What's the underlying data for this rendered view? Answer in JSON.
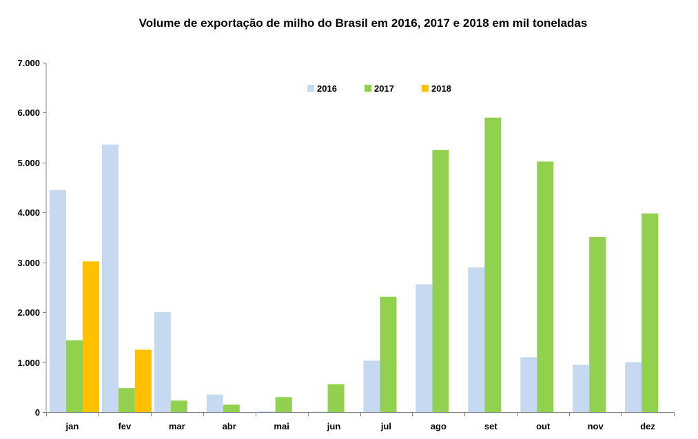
{
  "chart_data": {
    "type": "bar",
    "title": "Volume de exportação de milho do Brasil em 2016, 2017 e 2018 em mil toneladas",
    "xlabel": "",
    "ylabel": "",
    "categories": [
      "jan",
      "fev",
      "mar",
      "abr",
      "mai",
      "jun",
      "jul",
      "ago",
      "set",
      "out",
      "nov",
      "dez"
    ],
    "series": [
      {
        "name": "2016",
        "color": "#c6d9f1",
        "values": [
          4450,
          5360,
          2000,
          350,
          20,
          10,
          1030,
          2560,
          2900,
          1100,
          950,
          1000
        ]
      },
      {
        "name": "2017",
        "color": "#92d050",
        "values": [
          1440,
          480,
          230,
          150,
          300,
          560,
          2310,
          5250,
          5900,
          5020,
          3510,
          3980
        ]
      },
      {
        "name": "2018",
        "color": "#ffc000",
        "values": [
          3020,
          1250,
          null,
          null,
          null,
          null,
          null,
          null,
          null,
          null,
          null,
          null
        ]
      }
    ],
    "ylim": [
      0,
      7000
    ],
    "yticks": [
      0,
      1000,
      2000,
      3000,
      4000,
      5000,
      6000,
      7000
    ],
    "ytick_labels": [
      "0",
      "1.000",
      "2.000",
      "3.000",
      "4.000",
      "5.000",
      "6.000",
      "7.000"
    ],
    "grid": false,
    "legend_position": "top-right"
  }
}
